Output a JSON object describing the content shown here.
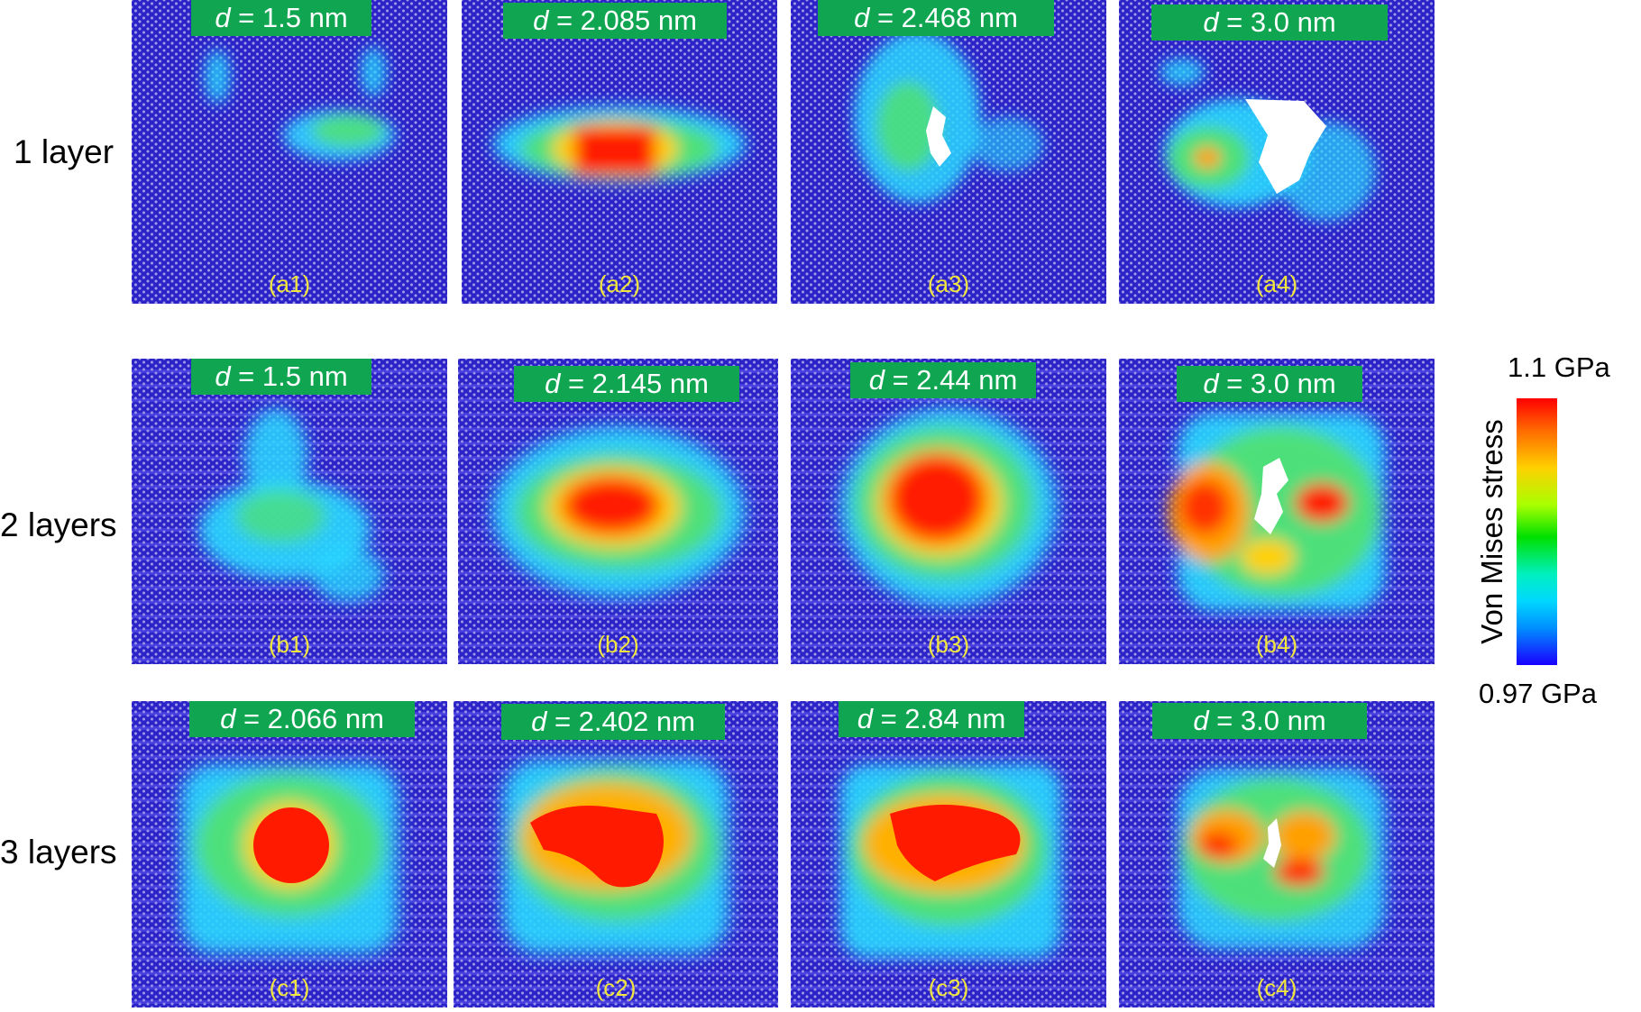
{
  "rows": [
    {
      "label": "1 layer",
      "panels": [
        {
          "var": "d",
          "value": " = 1.5 nm",
          "id": "(a1)"
        },
        {
          "var": "d",
          "value": " = 2.085 nm",
          "id": "(a2)"
        },
        {
          "var": "d",
          "value": " = 2.468 nm",
          "id": "(a3)"
        },
        {
          "var": "d",
          "value": " = 3.0 nm",
          "id": "(a4)"
        }
      ]
    },
    {
      "label": "2 layers",
      "panels": [
        {
          "var": "d",
          "value": " = 1.5 nm",
          "id": "(b1)"
        },
        {
          "var": "d",
          "value": " = 2.145 nm",
          "id": "(b2)"
        },
        {
          "var": "d",
          "value": " = 2.44 nm",
          "id": "(b3)"
        },
        {
          "var": "d",
          "value": " = 3.0 nm",
          "id": "(b4)"
        }
      ]
    },
    {
      "label": "3 layers",
      "panels": [
        {
          "var": "d",
          "value": " = 2.066 nm",
          "id": "(c1)"
        },
        {
          "var": "d",
          "value": " = 2.402 nm",
          "id": "(c2)"
        },
        {
          "var": "d",
          "value": " = 2.84 nm",
          "id": "(c3)"
        },
        {
          "var": "d",
          "value": " = 3.0 nm",
          "id": "(c4)"
        }
      ]
    }
  ],
  "colorbar": {
    "title": "Von Mises stress",
    "max_label": "1.1 GPa",
    "min_label": "0.97 GPa",
    "colors": [
      "#ff0000",
      "#ffd000",
      "#00e000",
      "#00d8ff",
      "#1a00ff"
    ]
  }
}
